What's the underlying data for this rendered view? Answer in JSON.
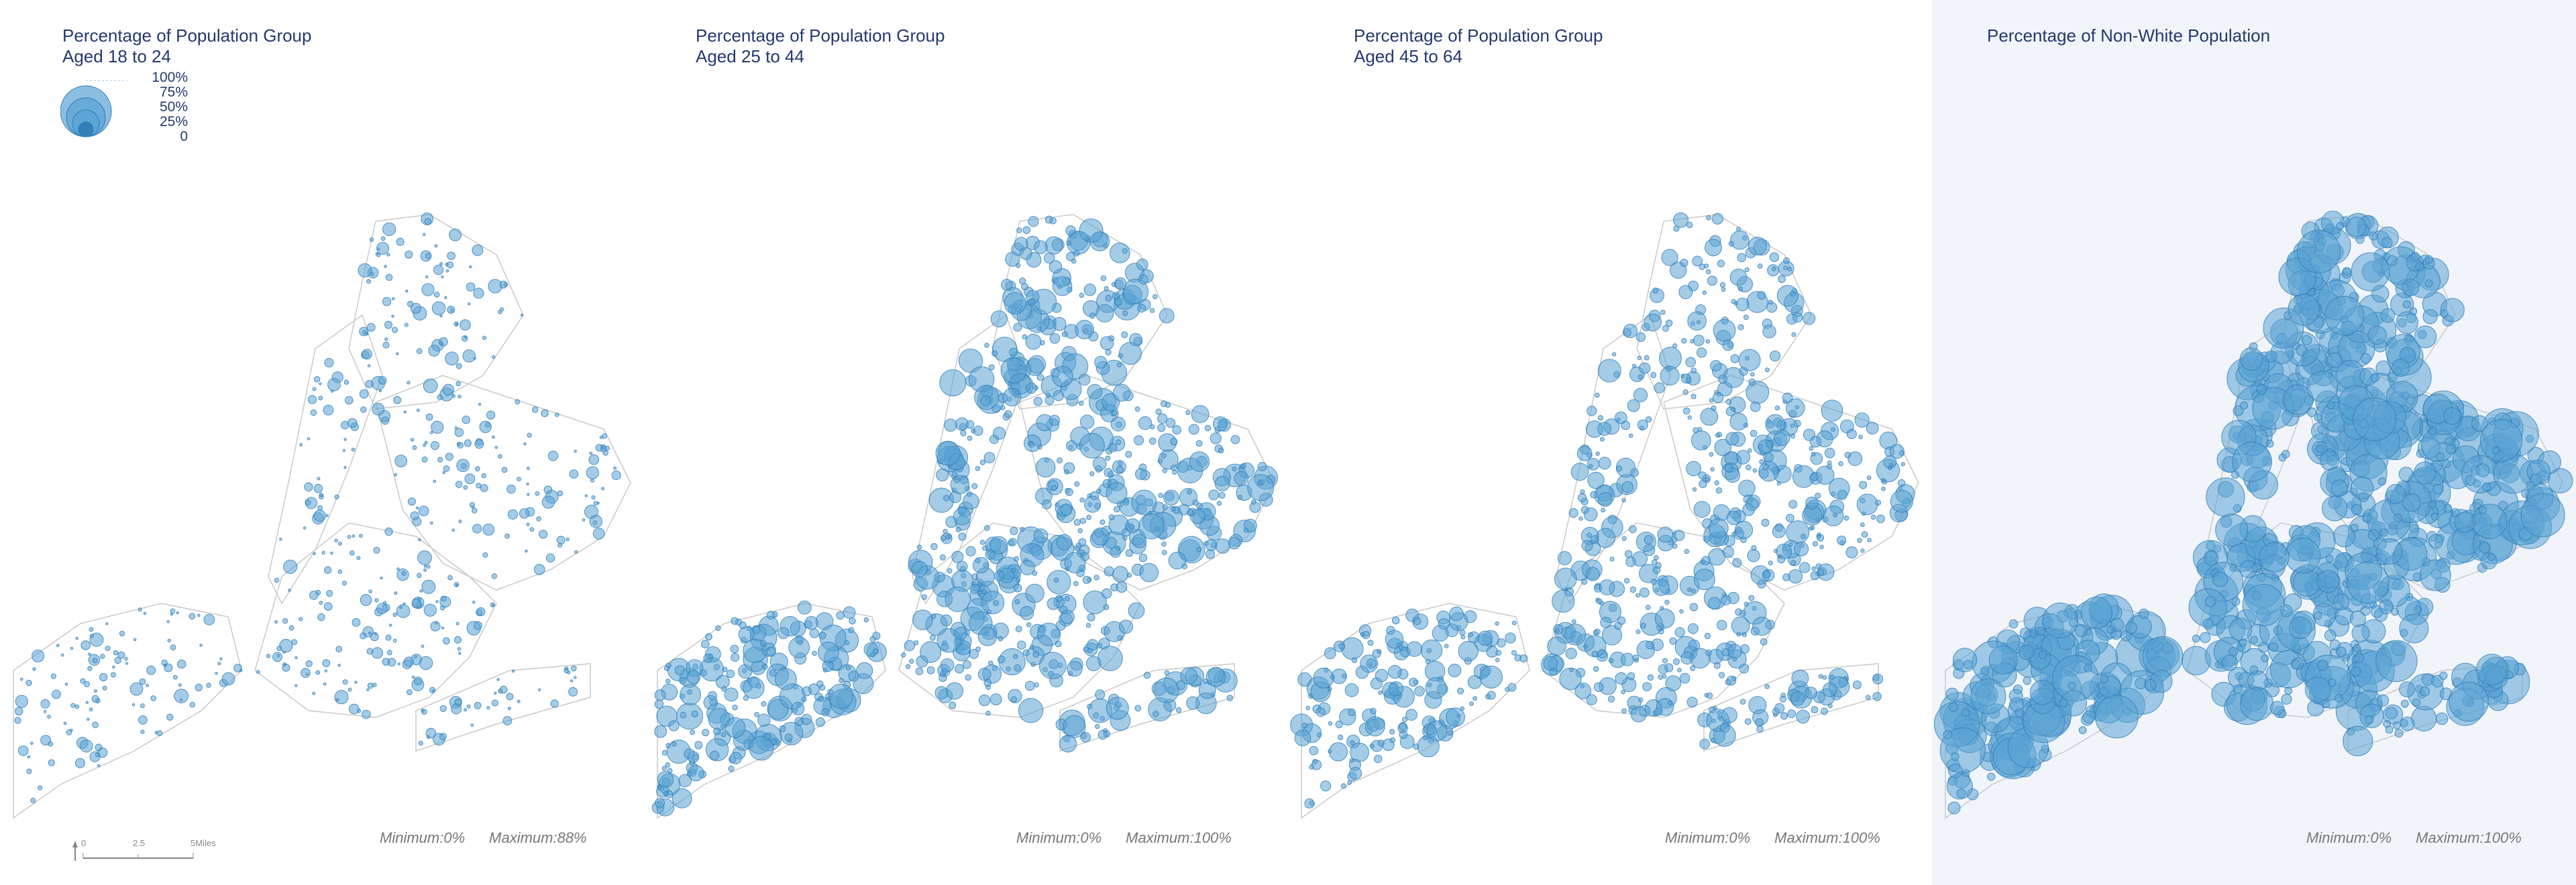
{
  "panels": [
    {
      "title_line1": "Percentage of Population Group",
      "title_line2": "Aged 18 to 24",
      "minimum": "Minimum:0%",
      "maximum": "Maximum:88%",
      "density": 0.6,
      "size_scale": 0.55,
      "background": "#ffffff"
    },
    {
      "title_line1": "Percentage of Population Group",
      "title_line2": "Aged 25 to 44",
      "minimum": "Minimum:0%",
      "maximum": "Maximum:100%",
      "density": 1.0,
      "size_scale": 1.05,
      "background": "#ffffff"
    },
    {
      "title_line1": "Percentage of Population Group",
      "title_line2": "Aged 45 to 64",
      "minimum": "Minimum:0%",
      "maximum": "Maximum:100%",
      "density": 0.9,
      "size_scale": 0.9,
      "background": "#ffffff"
    },
    {
      "title_line1": "Percentage of Non-White Population",
      "title_line2": "",
      "minimum": "Minimum:0%",
      "maximum": "Maximum:100%",
      "density": 1.0,
      "size_scale": 1.8,
      "background": "#f1f5fa"
    }
  ],
  "legend": {
    "labels": [
      "100%",
      "75%",
      "50%",
      "25%",
      "0"
    ]
  },
  "scalebar": {
    "labels": [
      "0",
      "2.5",
      "5Miles"
    ]
  },
  "colors": {
    "bubble_fill": "#5aa3d4",
    "bubble_stroke": "#2f7cb5",
    "boundary": "#c9c9c9",
    "title": "#23396e"
  }
}
